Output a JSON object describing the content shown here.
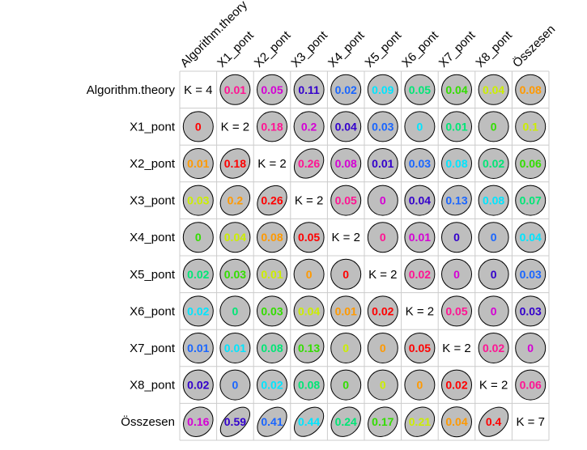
{
  "chart_data": {
    "type": "correlation-matrix",
    "variables": [
      "Algorithm.theory",
      "X1_pont",
      "X2_pont",
      "X3_pont",
      "X4_pont",
      "X5_pont",
      "X6_pont",
      "X7_pont",
      "X8_pont",
      "Összesen"
    ],
    "diagonal": [
      "K = 4",
      "K = 2",
      "K = 2",
      "K = 2",
      "K = 2",
      "K = 2",
      "K = 2",
      "K = 2",
      "K = 2",
      "K = 7"
    ],
    "values": [
      [
        null,
        "0.01",
        "0.05",
        "0.11",
        "0.02",
        "0.09",
        "0.05",
        "0.04",
        "0.04",
        "0.08"
      ],
      [
        "0",
        null,
        "0.18",
        "0.2",
        "0.04",
        "0.03",
        "0",
        "0.01",
        "0",
        "0.1"
      ],
      [
        "0.01",
        "0.18",
        null,
        "0.26",
        "0.08",
        "0.01",
        "0.03",
        "0.08",
        "0.02",
        "0.06"
      ],
      [
        "0.03",
        "0.2",
        "0.26",
        null,
        "0.05",
        "0",
        "0.04",
        "0.13",
        "0.08",
        "0.07"
      ],
      [
        "0",
        "0.04",
        "0.08",
        "0.05",
        null,
        "0",
        "0.01",
        "0",
        "0",
        "0.04"
      ],
      [
        "0.02",
        "0.03",
        "0.01",
        "0",
        "0",
        null,
        "0.02",
        "0",
        "0",
        "0.03"
      ],
      [
        "0.02",
        "0",
        "0.03",
        "0.04",
        "0.01",
        "0.02",
        null,
        "0.05",
        "0",
        "0.03"
      ],
      [
        "0.01",
        "0.01",
        "0.08",
        "0.13",
        "0",
        "0",
        "0.05",
        null,
        "0.02",
        "0"
      ],
      [
        "0.02",
        "0",
        "0.02",
        "0.08",
        "0",
        "0",
        "0",
        "0.02",
        null,
        "0.06"
      ],
      [
        "0.16",
        "0.59",
        "0.41",
        "0.44",
        "0.24",
        "0.17",
        "0.21",
        "0.04",
        "0.4",
        null
      ]
    ],
    "tilt": [
      [
        0,
        0,
        0,
        0,
        0,
        0,
        0,
        0,
        0,
        0
      ],
      [
        0,
        0,
        0,
        0,
        0,
        0,
        0,
        0,
        0,
        0
      ],
      [
        0,
        0.18,
        0,
        0.26,
        0,
        0,
        0,
        0,
        0,
        0
      ],
      [
        0,
        0.2,
        0.26,
        0,
        0,
        0,
        0,
        0.13,
        0,
        0
      ],
      [
        0,
        0,
        0,
        0,
        0,
        0,
        0,
        0,
        0,
        0
      ],
      [
        0,
        0,
        0,
        0,
        0,
        0,
        0,
        0,
        0,
        0
      ],
      [
        0,
        0,
        0,
        0,
        0,
        0,
        0,
        0,
        0,
        0
      ],
      [
        0,
        0,
        0,
        0.13,
        0,
        0,
        0,
        0,
        0,
        0
      ],
      [
        0,
        0,
        0,
        0,
        0,
        0,
        0,
        0,
        0,
        0
      ],
      [
        0.16,
        0.59,
        0.41,
        0.44,
        0.24,
        0.17,
        0.21,
        0,
        0.4,
        0
      ]
    ],
    "colors": [
      [
        null,
        "#ff1493",
        "#d400d4",
        "#3300cc",
        "#1a66ff",
        "#00e5ff",
        "#00e676",
        "#33dd00",
        "#ccee00",
        "#ff9900"
      ],
      [
        "#ff0000",
        null,
        "#ff1493",
        "#d400d4",
        "#3300cc",
        "#1a66ff",
        "#00e5ff",
        "#00e676",
        "#33dd00",
        "#ccee00"
      ],
      [
        "#ff9900",
        "#ff0000",
        null,
        "#ff1493",
        "#d400d4",
        "#3300cc",
        "#1a66ff",
        "#00e5ff",
        "#00e676",
        "#33dd00"
      ],
      [
        "#ccee00",
        "#ff9900",
        "#ff0000",
        null,
        "#ff1493",
        "#d400d4",
        "#3300cc",
        "#1a66ff",
        "#00e5ff",
        "#00e676"
      ],
      [
        "#33dd00",
        "#ccee00",
        "#ff9900",
        "#ff0000",
        null,
        "#ff1493",
        "#d400d4",
        "#3300cc",
        "#1a66ff",
        "#00e5ff"
      ],
      [
        "#00e676",
        "#33dd00",
        "#ccee00",
        "#ff9900",
        "#ff0000",
        null,
        "#ff1493",
        "#d400d4",
        "#3300cc",
        "#1a66ff"
      ],
      [
        "#00e5ff",
        "#00e676",
        "#33dd00",
        "#ccee00",
        "#ff9900",
        "#ff0000",
        null,
        "#ff1493",
        "#d400d4",
        "#3300cc"
      ],
      [
        "#1a66ff",
        "#00e5ff",
        "#00e676",
        "#33dd00",
        "#ccee00",
        "#ff9900",
        "#ff0000",
        null,
        "#ff1493",
        "#d400d4"
      ],
      [
        "#3300cc",
        "#1a66ff",
        "#00e5ff",
        "#00e676",
        "#33dd00",
        "#ccee00",
        "#ff9900",
        "#ff0000",
        null,
        "#ff1493"
      ],
      [
        "#d400d4",
        "#3300cc",
        "#1a66ff",
        "#00e5ff",
        "#00e676",
        "#33dd00",
        "#ccee00",
        "#ff9900",
        "#ff0000",
        null
      ]
    ],
    "ellipse_fill": "#bebebe",
    "grid_color": "#cccccc"
  }
}
